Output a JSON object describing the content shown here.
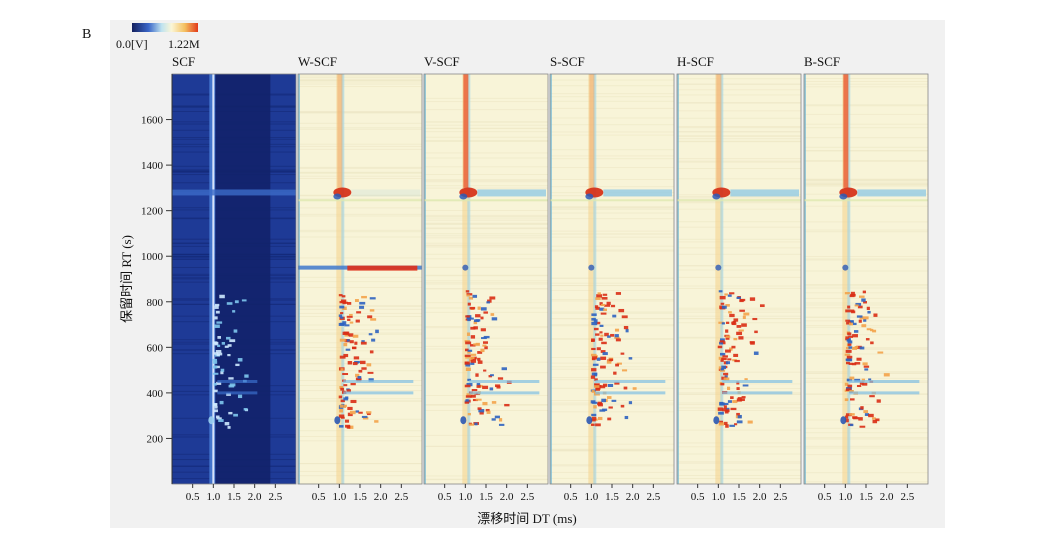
{
  "figure_label": "B",
  "colorbar": {
    "min_label": "0.0[V]",
    "max_label": "1.22M"
  },
  "chart_data": {
    "type": "heatmap",
    "panels": [
      "SCF",
      "W-SCF",
      "V-SCF",
      "S-SCF",
      "H-SCF",
      "B-SCF"
    ],
    "ylabel": "保留时间 RT (s)",
    "xlabel": "漂移时间 DT (ms)",
    "y_ticks": [
      200,
      400,
      600,
      800,
      1000,
      1200,
      1400,
      1600
    ],
    "x_ticks": [
      "0.5",
      "1.0",
      "1.5",
      "2.0",
      "2.5"
    ],
    "xlim": [
      0,
      3
    ],
    "ylim": [
      0,
      1800
    ],
    "colormap": [
      "#1a2f8f",
      "#3a66c8",
      "#bfe3f0",
      "#fbf6d6",
      "#f4c060",
      "#e23a1a"
    ],
    "background_colors": {
      "scf": "#1e3a96",
      "difference": "#f8f4d8"
    },
    "reactant_ion_peak_dt": 1.0,
    "notable_rt_bands": [
      280,
      400,
      450,
      950,
      1280
    ]
  }
}
